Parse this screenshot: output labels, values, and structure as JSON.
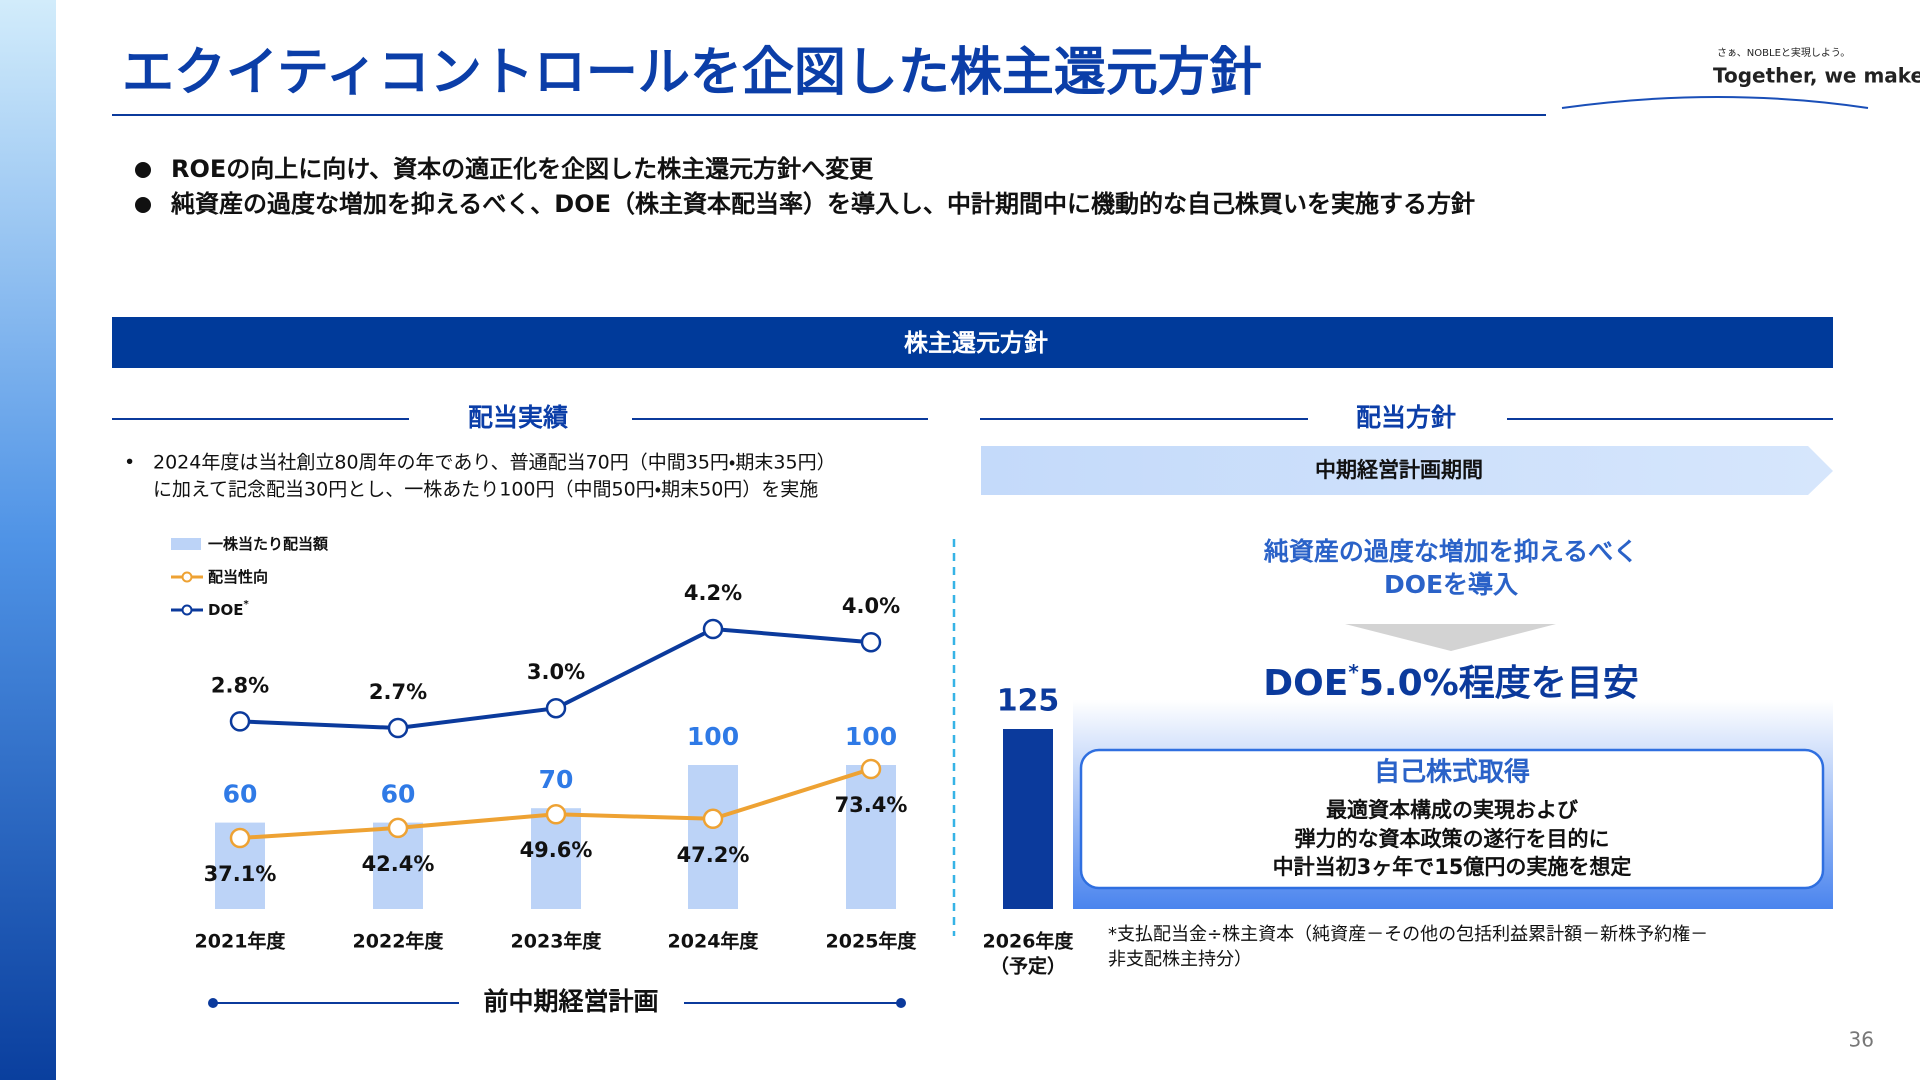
{
  "header": {
    "title": "エクイティコントロールを企図した株主還元方針",
    "logo_tagline": "さぁ、NOBLEと実現しよう。",
    "logo_text": "Together, we make good sense."
  },
  "bullets": [
    "ROEの向上に向け、資本の適正化を企図した株主還元方針へ変更",
    "純資産の過度な増加を抑えるべく、DOE（株主資本配当率）を導入し、中計期間中に機動的な自己株買いを実施する方針"
  ],
  "section_title": "株主還元方針",
  "left": {
    "heading": "配当実績",
    "note": [
      "2024年度は当社創立80周年の年であり、普通配当70円（中間35円・期末35円）",
      "に加えて記念配当30円とし、一株あたり100円（中間50円・期末50円）を実施"
    ],
    "plan_label": "前中期経営計画"
  },
  "chart_data": {
    "type": "bar",
    "categories": [
      "2021年度",
      "2022年度",
      "2023年度",
      "2024年度",
      "2025年度",
      "2026年度"
    ],
    "category_notes": [
      null,
      null,
      null,
      null,
      null,
      "（予定）"
    ],
    "ylim": [
      0,
      150
    ],
    "series": [
      {
        "name": "一株当たり配当額",
        "type": "bar",
        "colors": [
          "#bcd3f7",
          "#bcd3f7",
          "#bcd3f7",
          "#bcd3f7",
          "#bcd3f7",
          "#0b3a9c"
        ],
        "label_colors": [
          "#2f7ae6",
          "#2f7ae6",
          "#2f7ae6",
          "#2f7ae6",
          "#2f7ae6",
          "#0b3a9c"
        ],
        "values": [
          60,
          60,
          70,
          100,
          100,
          125
        ]
      },
      {
        "name": "配当性向",
        "type": "line",
        "color": "#eea233",
        "values": [
          37.1,
          42.4,
          49.6,
          47.2,
          73.4,
          null
        ],
        "value_labels": [
          "37.1%",
          "42.4%",
          "49.6%",
          "47.2%",
          "73.4%",
          null
        ]
      },
      {
        "name": "DOE",
        "footnote_mark": "*",
        "type": "line",
        "color": "#0b3a9c",
        "values": [
          2.8,
          2.7,
          3.0,
          4.2,
          4.0,
          null
        ],
        "value_labels": [
          "2.8%",
          "2.7%",
          "3.0%",
          "4.2%",
          "4.0%",
          null
        ]
      }
    ]
  },
  "right": {
    "heading": "配当方針",
    "period": "中期経営計画期間",
    "intro": [
      "純資産の過度な増加を抑えるべく",
      "DOEを導入"
    ],
    "target": {
      "prefix": "DOE",
      "mark": "*",
      "text": "5.0%程度を目安"
    },
    "buyback": {
      "title": "自己株式取得",
      "lines": [
        "最適資本構成の実現および",
        "弾力的な資本政策の遂行を目的に",
        "中計当初3ヶ年で15億円の実施を想定"
      ]
    },
    "footnote": [
      "*支払配当金÷株主資本（純資産－その他の包括利益累計額－新株予約権－",
      "非支配株主持分）"
    ]
  },
  "page_number": 36
}
